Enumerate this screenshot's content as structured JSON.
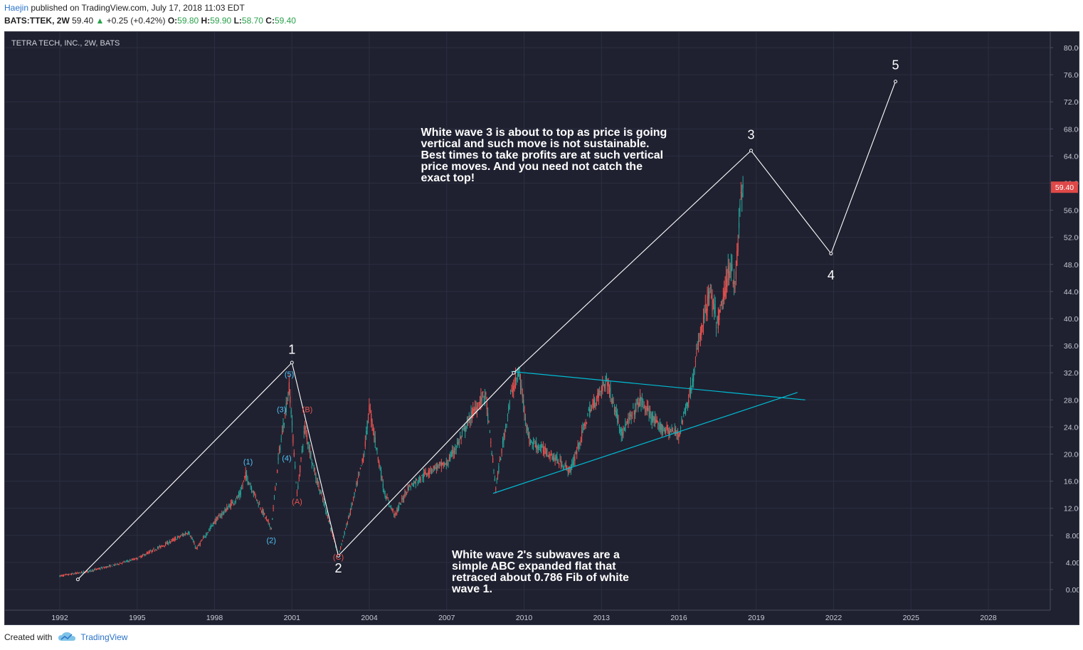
{
  "header": {
    "author": "Haejin",
    "published_text": "published on TradingView.com, July 17, 2018 11:03 EDT",
    "symbol": "BATS:TTEK, 2W",
    "last": "59.40",
    "change": "+0.25 (+0.42%)",
    "o_label": "O:",
    "o_value": "59.80",
    "h_label": "H:",
    "h_value": "59.90",
    "l_label": "L:",
    "l_value": "58.70",
    "c_label": "C:",
    "c_value": "59.40"
  },
  "footer": {
    "created_with": "Created with",
    "brand": "TradingView"
  },
  "colors": {
    "background": "#1f2130",
    "up": "#26a69a",
    "down": "#ef5350",
    "trendline": "#00bcd4",
    "wave": "#ffffff",
    "price_badge": "#e04848"
  },
  "chart_data": {
    "type": "candlestick",
    "title": "TETRA TECH, INC., 2W, BATS",
    "x_ticks": [
      1992,
      1995,
      1998,
      2001,
      2004,
      2007,
      2010,
      2013,
      2016,
      2019,
      2022,
      2025,
      2028
    ],
    "y_ticks": [
      "80.00",
      "76.00",
      "72.00",
      "68.00",
      "64.00",
      "60.00",
      "56.00",
      "52.00",
      "48.00",
      "44.00",
      "40.00",
      "36.00",
      "32.00",
      "28.00",
      "24.00",
      "20.00",
      "16.00",
      "12.00",
      "8.00",
      "4.00",
      "0.00"
    ],
    "ylim": [
      -3,
      83
    ],
    "last_price": "59.40",
    "price_path": [
      [
        1992.0,
        2.0
      ],
      [
        1993.0,
        2.6
      ],
      [
        1994.0,
        3.5
      ],
      [
        1995.0,
        4.6
      ],
      [
        1996.0,
        6.5
      ],
      [
        1997.0,
        8.5
      ],
      [
        1997.3,
        6.0
      ],
      [
        1998.0,
        10.0
      ],
      [
        1999.0,
        14.0
      ],
      [
        1999.2,
        17.0
      ],
      [
        1999.8,
        12.0
      ],
      [
        2000.2,
        9.0
      ],
      [
        2000.5,
        20.0
      ],
      [
        2000.9,
        30.0
      ],
      [
        2001.2,
        14.0
      ],
      [
        2001.5,
        24.0
      ],
      [
        2001.9,
        17.0
      ],
      [
        2002.3,
        12.0
      ],
      [
        2002.8,
        5.0
      ],
      [
        2003.3,
        12.0
      ],
      [
        2003.8,
        20.0
      ],
      [
        2004.0,
        27.0
      ],
      [
        2004.6,
        14.0
      ],
      [
        2005.0,
        11.0
      ],
      [
        2005.5,
        15.0
      ],
      [
        2006.5,
        18.0
      ],
      [
        2007.0,
        18.5
      ],
      [
        2007.5,
        22.0
      ],
      [
        2008.0,
        26.0
      ],
      [
        2008.5,
        29.0
      ],
      [
        2008.9,
        15.0
      ],
      [
        2009.5,
        29.0
      ],
      [
        2009.8,
        32.0
      ],
      [
        2010.2,
        22.0
      ],
      [
        2011.0,
        20.0
      ],
      [
        2011.8,
        17.5
      ],
      [
        2012.5,
        26.0
      ],
      [
        2013.2,
        31.0
      ],
      [
        2013.8,
        23.0
      ],
      [
        2014.5,
        28.0
      ],
      [
        2015.2,
        24.0
      ],
      [
        2016.0,
        23.0
      ],
      [
        2016.5,
        30.0
      ],
      [
        2016.8,
        37.0
      ],
      [
        2017.2,
        44.0
      ],
      [
        2017.5,
        39.0
      ],
      [
        2018.0,
        48.0
      ],
      [
        2018.2,
        45.0
      ],
      [
        2018.4,
        58.0
      ],
      [
        2018.5,
        59.4
      ]
    ],
    "wave_path": [
      [
        1992.7,
        1.5
      ],
      [
        2001.0,
        33.5
      ],
      [
        2002.8,
        5.0
      ],
      [
        2009.6,
        32.0
      ],
      [
        2018.8,
        64.8
      ],
      [
        2021.9,
        49.6
      ],
      [
        2024.4,
        75.0
      ]
    ],
    "trendlines": [
      {
        "from": [
          2009.5,
          32.2
        ],
        "to": [
          2020.9,
          28.0
        ]
      },
      {
        "from": [
          2008.8,
          14.2
        ],
        "to": [
          2020.6,
          29.1
        ]
      }
    ],
    "wave_labels": [
      {
        "text": "1",
        "x": 2001.0,
        "y": 34.8,
        "color": "#ffffff",
        "size": 18
      },
      {
        "text": "2",
        "x": 2002.8,
        "y": 2.5,
        "color": "#ffffff",
        "size": 18
      },
      {
        "text": "3",
        "x": 2018.8,
        "y": 66.5,
        "color": "#ffffff",
        "size": 18
      },
      {
        "text": "4",
        "x": 2021.9,
        "y": 45.8,
        "color": "#ffffff",
        "size": 18
      },
      {
        "text": "5",
        "x": 2024.4,
        "y": 76.8,
        "color": "#ffffff",
        "size": 18
      },
      {
        "text": "(1)",
        "x": 1999.3,
        "y": 18.5,
        "color": "#4fc3f7",
        "size": 11
      },
      {
        "text": "(2)",
        "x": 2000.2,
        "y": 6.9,
        "color": "#4fc3f7",
        "size": 11
      },
      {
        "text": "(3)",
        "x": 2000.6,
        "y": 26.2,
        "color": "#4fc3f7",
        "size": 11
      },
      {
        "text": "(4)",
        "x": 2000.8,
        "y": 19.0,
        "color": "#4fc3f7",
        "size": 11
      },
      {
        "text": "(5)",
        "x": 2000.9,
        "y": 31.4,
        "color": "#4fc3f7",
        "size": 11
      },
      {
        "text": "(A)",
        "x": 2001.2,
        "y": 12.6,
        "color": "#ef5350",
        "size": 11
      },
      {
        "text": "(B)",
        "x": 2001.6,
        "y": 26.2,
        "color": "#ef5350",
        "size": 11
      },
      {
        "text": "(C)",
        "x": 2002.8,
        "y": 4.4,
        "color": "#ef5350",
        "size": 11
      }
    ],
    "annotations": [
      {
        "lines": [
          "White wave 3 is about to top as price is going",
          "vertical and such move is not sustainable.",
          "Best times to take profits are at such vertical",
          "price moves. And you need not catch the",
          "exact top!"
        ],
        "x": 2006.0,
        "y": 67.0
      },
      {
        "lines": [
          "White wave 2's subwaves are a",
          "simple ABC expanded flat that",
          "retraced about 0.786 Fib of white",
          "wave 1."
        ],
        "x": 2007.2,
        "y": 4.6
      }
    ]
  }
}
